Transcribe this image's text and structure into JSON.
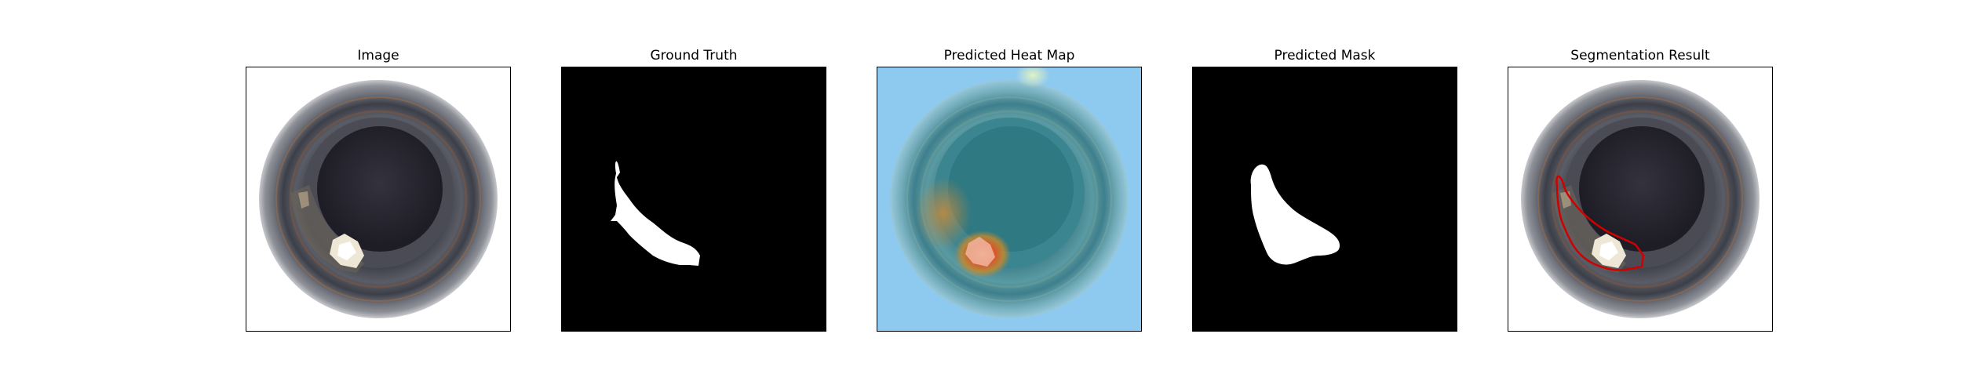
{
  "figure": {
    "panels": [
      {
        "title": "Image"
      },
      {
        "title": "Ground Truth"
      },
      {
        "title": "Predicted Heat Map"
      },
      {
        "title": "Predicted Mask"
      },
      {
        "title": "Segmentation Result"
      }
    ]
  },
  "colors": {
    "background": "#ffffff",
    "frame": "#000000",
    "mask_background": "#000000",
    "mask_foreground": "#ffffff",
    "contour": "#d00000",
    "heatmap_low": "#8ec9ef",
    "heatmap_high": "#e04a2a"
  }
}
